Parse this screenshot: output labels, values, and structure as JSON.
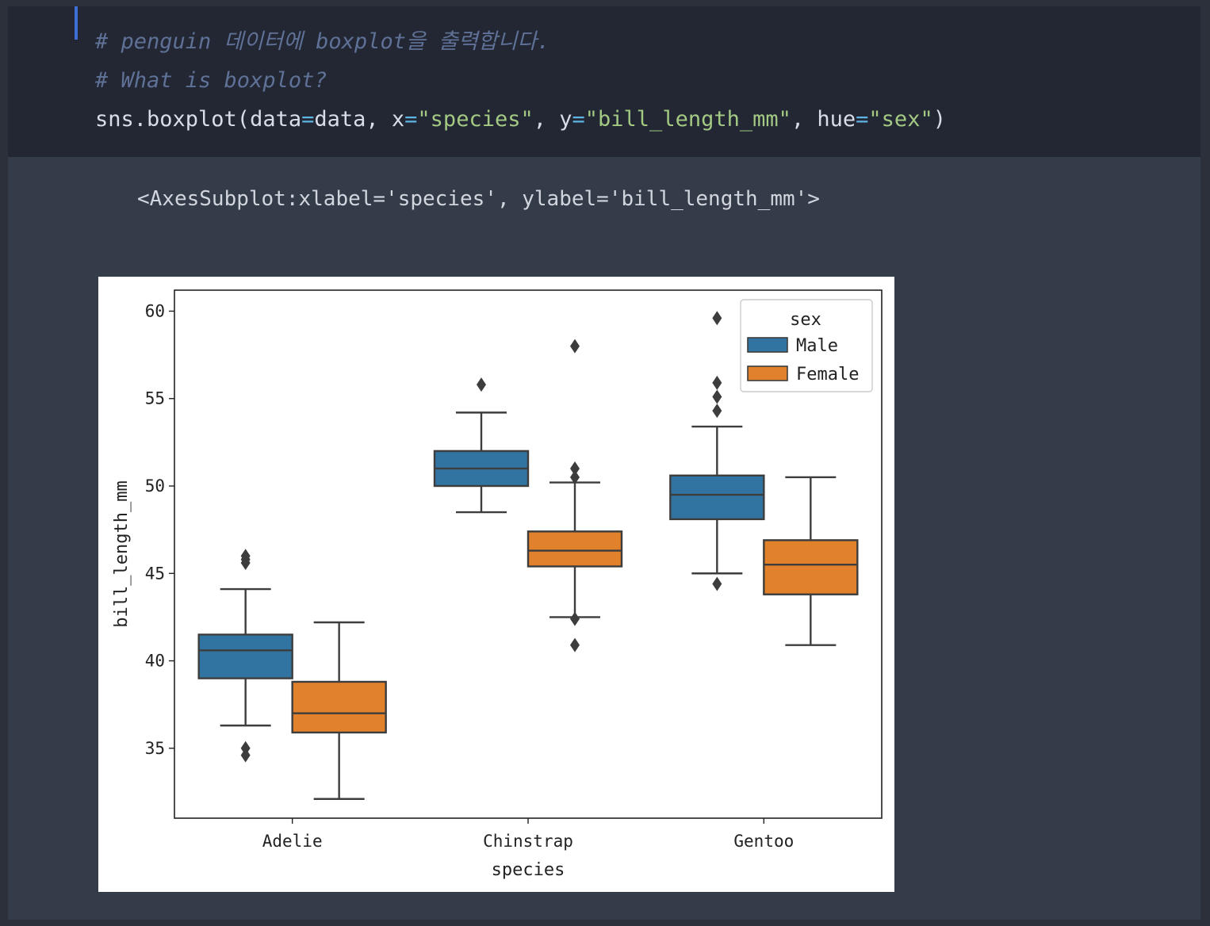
{
  "code": {
    "comment1": "# penguin 데이터에 boxplot을 출력합니다.",
    "comment2": "# What is boxplot?",
    "line": {
      "p1": "sns.boxplot(data",
      "eq": "=",
      "p2": "data, x",
      "s1": "\"species\"",
      "p3": ", y",
      "s2": "\"bill_length_mm\"",
      "p4": ", hue",
      "s3": "\"sex\"",
      "p5": ")"
    }
  },
  "output": {
    "repr": "<AxesSubplot:xlabel='species', ylabel='bill_length_mm'>"
  },
  "colors": {
    "male": "#3274a1",
    "female": "#e1812c",
    "box_edge": "#3d3d3d"
  },
  "chart_data": {
    "type": "box",
    "xlabel": "species",
    "ylabel": "bill_length_mm",
    "categories": [
      "Adelie",
      "Chinstrap",
      "Gentoo"
    ],
    "y_ticks": [
      35,
      40,
      45,
      50,
      55,
      60
    ],
    "ylim": [
      31,
      61.2
    ],
    "legend": {
      "title": "sex",
      "placement": "top-right"
    },
    "series": [
      {
        "name": "Male",
        "boxes": [
          {
            "whislo": 36.3,
            "q1": 39.0,
            "med": 40.6,
            "q3": 41.5,
            "whishi": 44.1,
            "fliers": [
              34.6,
              35.0,
              45.6,
              45.8,
              46.0
            ]
          },
          {
            "whislo": 48.5,
            "q1": 50.0,
            "med": 51.0,
            "q3": 52.0,
            "whishi": 54.2,
            "fliers": [
              55.8
            ]
          },
          {
            "whislo": 45.0,
            "q1": 48.1,
            "med": 49.5,
            "q3": 50.6,
            "whishi": 53.4,
            "fliers": [
              44.4,
              54.3,
              55.1,
              55.9,
              59.6
            ]
          }
        ]
      },
      {
        "name": "Female",
        "boxes": [
          {
            "whislo": 32.1,
            "q1": 35.9,
            "med": 37.0,
            "q3": 38.8,
            "whishi": 42.2,
            "fliers": []
          },
          {
            "whislo": 42.5,
            "q1": 45.4,
            "med": 46.3,
            "q3": 47.4,
            "whishi": 50.2,
            "fliers": [
              40.9,
              42.4,
              50.5,
              51.0,
              58.0
            ]
          },
          {
            "whislo": 40.9,
            "q1": 43.8,
            "med": 45.5,
            "q3": 46.9,
            "whishi": 50.5,
            "fliers": []
          }
        ]
      }
    ]
  }
}
